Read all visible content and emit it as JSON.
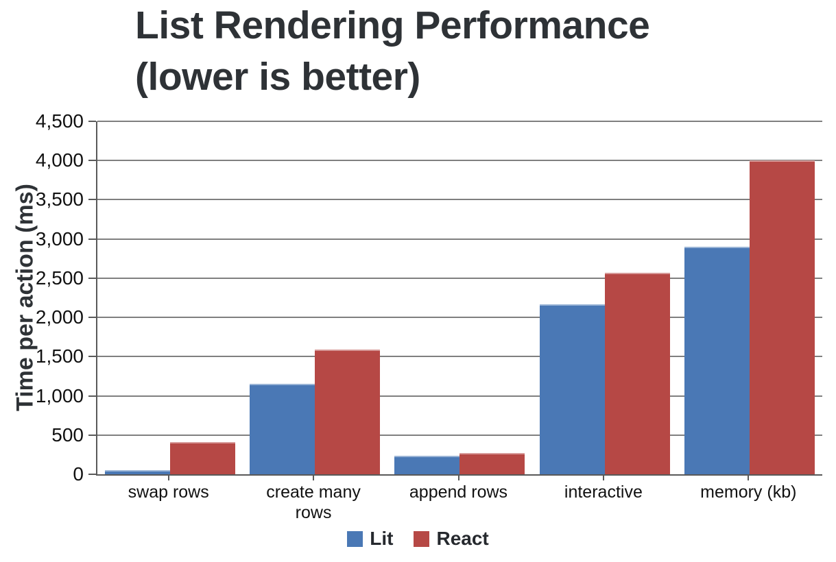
{
  "chart_data": {
    "type": "bar",
    "title": "List Rendering Performance (lower is better)",
    "title_lines": [
      "List Rendering Performance",
      "(lower is better)"
    ],
    "ylabel": "Time per action (ms)",
    "xlabel": "",
    "categories": [
      "swap rows",
      "create many rows",
      "append rows",
      "interactive",
      "memory (kb)"
    ],
    "series": [
      {
        "name": "Lit",
        "color": "#4a78b5",
        "values": [
          50,
          1150,
          240,
          2170,
          2900
        ]
      },
      {
        "name": "React",
        "color": "#b64845",
        "values": [
          410,
          1590,
          275,
          2570,
          4000
        ]
      }
    ],
    "ylim": [
      0,
      4500
    ],
    "ytick_step": 500,
    "ytick_labels": [
      "0",
      "500",
      "1,000",
      "1,500",
      "2,000",
      "2,500",
      "3,000",
      "3,500",
      "4,000",
      "4,500"
    ],
    "grid": true,
    "legend_position": "bottom",
    "grid_color": "#7f7f7f",
    "axis_color": "#595959",
    "title_color": "#2e3236",
    "tick_text_color": "#111111"
  }
}
